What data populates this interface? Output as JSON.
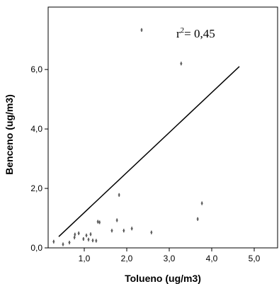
{
  "chart_data": {
    "type": "scatter",
    "xlabel": "Tolueno (ug/m3)",
    "ylabel": "Benceno (ug/m3)",
    "xlim": [
      0.15,
      5.55
    ],
    "ylim": [
      0,
      8.1
    ],
    "x_ticks": [
      1.0,
      2.0,
      3.0,
      4.0,
      5.0
    ],
    "x_tick_labels": [
      "1,0",
      "2,0",
      "3,0",
      "4,0",
      "5,0"
    ],
    "y_ticks": [
      0.0,
      2.0,
      4.0,
      6.0
    ],
    "y_tick_labels": [
      "0,0",
      "2,0",
      "4,0",
      "6,0"
    ],
    "annotation": {
      "base": "r",
      "sup": "2",
      "rest": "= 0,45"
    },
    "grid": false,
    "points": [
      {
        "x": 0.28,
        "y": 0.21
      },
      {
        "x": 0.5,
        "y": 0.12
      },
      {
        "x": 0.65,
        "y": 0.18
      },
      {
        "x": 0.77,
        "y": 0.35
      },
      {
        "x": 0.78,
        "y": 0.45
      },
      {
        "x": 0.87,
        "y": 0.49
      },
      {
        "x": 0.98,
        "y": 0.3
      },
      {
        "x": 1.05,
        "y": 0.42
      },
      {
        "x": 1.1,
        "y": 0.28
      },
      {
        "x": 1.15,
        "y": 0.46
      },
      {
        "x": 1.2,
        "y": 0.25
      },
      {
        "x": 1.28,
        "y": 0.24
      },
      {
        "x": 1.32,
        "y": 0.88
      },
      {
        "x": 1.36,
        "y": 0.86
      },
      {
        "x": 1.65,
        "y": 0.58
      },
      {
        "x": 1.77,
        "y": 0.93
      },
      {
        "x": 1.82,
        "y": 1.78
      },
      {
        "x": 1.93,
        "y": 0.58
      },
      {
        "x": 2.12,
        "y": 0.65
      },
      {
        "x": 2.35,
        "y": 7.33
      },
      {
        "x": 2.58,
        "y": 0.52
      },
      {
        "x": 3.28,
        "y": 6.2
      },
      {
        "x": 3.67,
        "y": 0.97
      },
      {
        "x": 3.77,
        "y": 1.5
      }
    ],
    "fit_line": {
      "x": [
        0.4,
        4.65
      ],
      "y": [
        0.38,
        6.1
      ]
    }
  }
}
